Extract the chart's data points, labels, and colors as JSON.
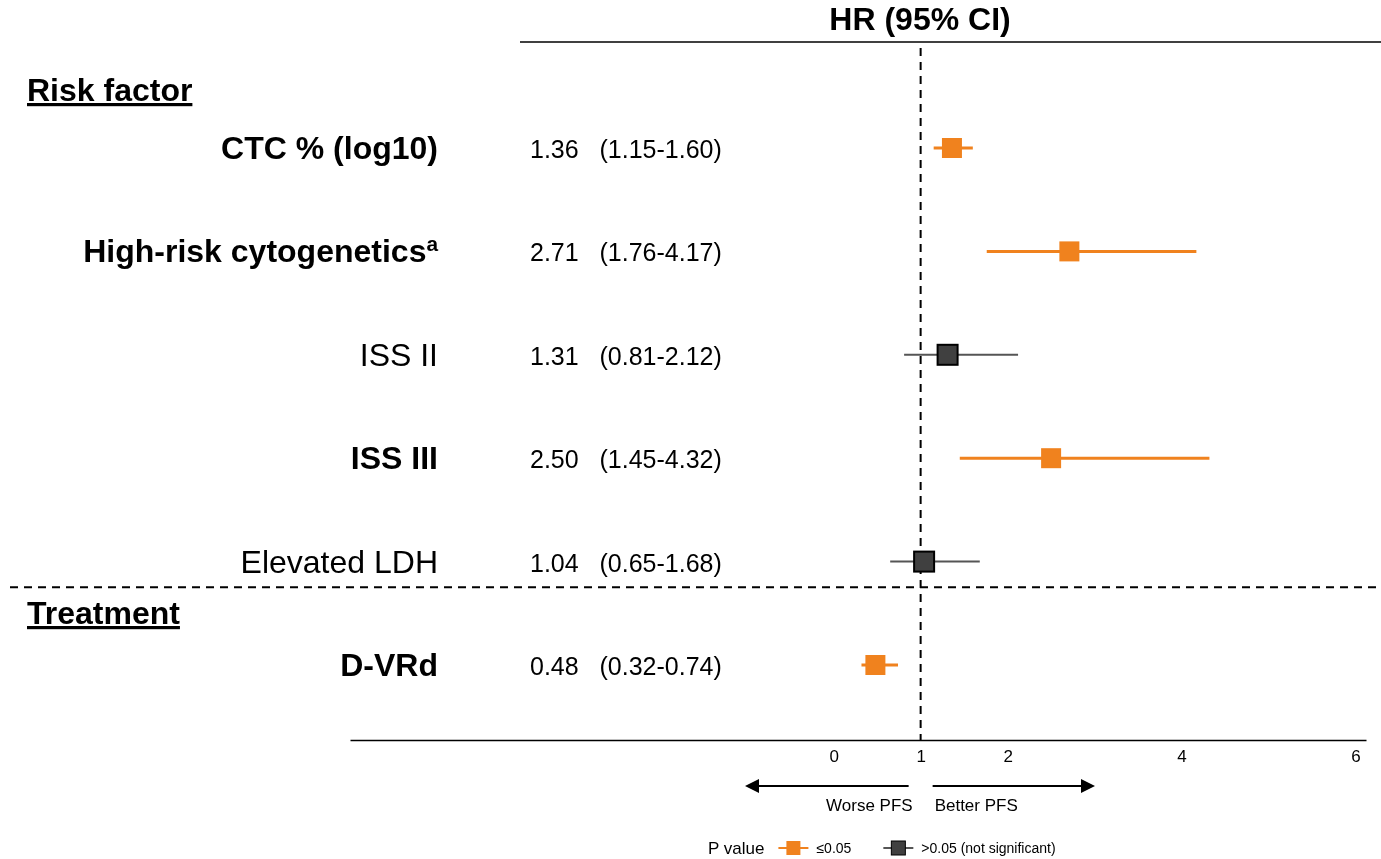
{
  "chart_data": {
    "type": "scatter",
    "orientation": "horizontal",
    "title": "HR (95% CI)",
    "categories": [
      "CTC % (log10)",
      "High-risk cytogenetics$^{a}$",
      "ISS II",
      "ISS III",
      "Elevated LDH",
      "D-VRd"
    ],
    "series": [
      {
        "name": "≤0.05",
        "color": "#f0821e",
        "values": [
          1.36,
          2.71,
          null,
          2.5,
          null,
          0.48
        ],
        "errors": [
          [
            1.15,
            1.6
          ],
          [
            1.76,
            4.17
          ],
          null,
          [
            1.45,
            4.32
          ],
          null,
          [
            0.32,
            0.74
          ]
        ]
      },
      {
        "name": ">0.05 (not significant)",
        "color": "#404040",
        "values": [
          null,
          null,
          1.31,
          null,
          1.04,
          null
        ],
        "errors": [
          null,
          null,
          [
            0.81,
            2.12
          ],
          null,
          [
            0.65,
            1.68
          ],
          null
        ]
      }
    ],
    "xlim": [
      -5.56,
      6.12
    ],
    "xticks": [
      0,
      1,
      2,
      4,
      6
    ],
    "ref_lines": [
      {
        "axis": "x",
        "value": 1,
        "line_style": "dashed",
        "color": "#000000"
      }
    ],
    "marker": "square",
    "legend": "bottom",
    "legend_title": "P value",
    "annotations": [
      "Risk factor",
      "Treatment",
      "Worse PFS",
      "Better PFS",
      "1.36   (1.15-1.60)",
      "2.71   (1.76-4.17)",
      "1.31   (0.81-2.12)",
      "2.50   (1.45-4.32)",
      "1.04   (0.65-1.68)",
      "0.48   (0.32-0.74)"
    ]
  }
}
